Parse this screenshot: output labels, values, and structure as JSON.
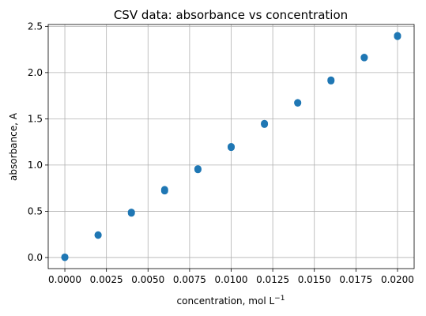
{
  "chart_data": {
    "type": "scatter",
    "title": "CSV data: absorbance vs concentration",
    "xlabel": "concentration, mol L",
    "xlabel_superscript": "−1",
    "ylabel": "absorbance, A",
    "xlim": [
      -0.001,
      0.021
    ],
    "ylim": [
      -0.12,
      2.52
    ],
    "grid": true,
    "marker_color": "#1f77b4",
    "x_ticks": [
      0.0,
      0.0025,
      0.005,
      0.0075,
      0.01,
      0.0125,
      0.015,
      0.0175,
      0.02
    ],
    "x_tick_labels": [
      "0.0000",
      "0.0025",
      "0.0050",
      "0.0075",
      "0.0100",
      "0.0125",
      "0.0150",
      "0.0175",
      "0.0200"
    ],
    "y_ticks": [
      0.0,
      0.5,
      1.0,
      1.5,
      2.0,
      2.5
    ],
    "y_tick_labels": [
      "0.0",
      "0.5",
      "1.0",
      "1.5",
      "2.0",
      "2.5"
    ],
    "points": [
      {
        "x": 0.0,
        "y": 0.0
      },
      {
        "x": 0.0,
        "y": 0.005
      },
      {
        "x": 0.002,
        "y": 0.24
      },
      {
        "x": 0.002,
        "y": 0.245
      },
      {
        "x": 0.004,
        "y": 0.48
      },
      {
        "x": 0.004,
        "y": 0.49
      },
      {
        "x": 0.006,
        "y": 0.72
      },
      {
        "x": 0.006,
        "y": 0.735
      },
      {
        "x": 0.008,
        "y": 0.95
      },
      {
        "x": 0.008,
        "y": 0.96
      },
      {
        "x": 0.01,
        "y": 1.19
      },
      {
        "x": 0.01,
        "y": 1.2
      },
      {
        "x": 0.012,
        "y": 1.44
      },
      {
        "x": 0.012,
        "y": 1.45
      },
      {
        "x": 0.014,
        "y": 1.67
      },
      {
        "x": 0.014,
        "y": 1.675
      },
      {
        "x": 0.016,
        "y": 1.91
      },
      {
        "x": 0.016,
        "y": 1.92
      },
      {
        "x": 0.018,
        "y": 2.16
      },
      {
        "x": 0.018,
        "y": 2.165
      },
      {
        "x": 0.02,
        "y": 2.39
      },
      {
        "x": 0.02,
        "y": 2.4
      }
    ]
  }
}
